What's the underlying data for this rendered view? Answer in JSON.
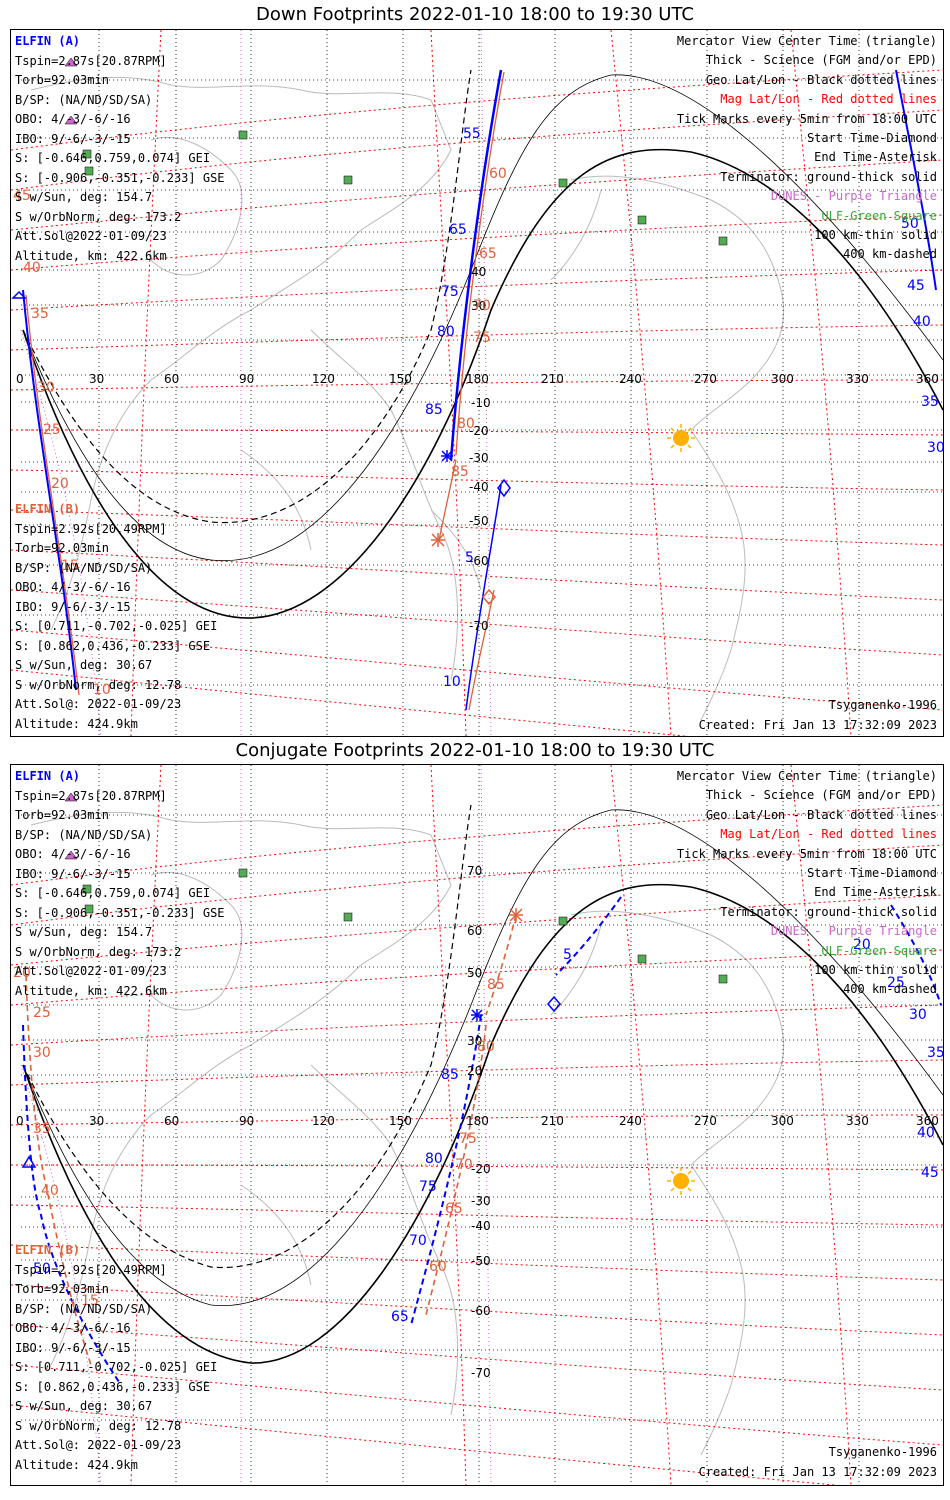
{
  "colors": {
    "elfin_a": "#0000ff",
    "elfin_b": "#e0603a",
    "mag_grid": "#ff0000",
    "geo_grid": "#000000",
    "terminator": "#000000",
    "sun": "#ffb000",
    "ground_station": "#33aa33",
    "dunes": "#cc66cc",
    "coast": "#bbbbbb"
  },
  "icons": {
    "sun": "sun-icon",
    "start": "diamond-icon",
    "end": "asterisk-icon",
    "center": "triangle-icon",
    "station": "square-icon"
  },
  "axes": {
    "lon_ticks": [
      "0",
      "30",
      "60",
      "90",
      "120",
      "150",
      "180",
      "210",
      "240",
      "270",
      "300",
      "330",
      "360"
    ]
  },
  "panels": [
    {
      "title": "Down Footprints 2022-01-10 18:00 to 19:30 UTC",
      "lat_labels": [
        "70",
        "60",
        "50",
        "40",
        "30",
        "20",
        "10",
        "-10",
        "-20",
        "-30",
        "-40",
        "-50",
        "-60",
        "-70"
      ],
      "elfin_a": {
        "name": "ELFIN (A)",
        "lines": [
          "Tspin=2.87s[20.87RPM]",
          "Torb=92.03min",
          "B/SP: (NA/ND/SD/SA)",
          "OBO: 4/-3/-6/-16",
          "IBO: 9/-6/-3/-15",
          "S: [-0.646,0.759,0.074] GEI",
          "S: [-0.906,-0.351,-0.233] GSE",
          "S w/Sun, deg: 154.7",
          "S w/OrbNorm, deg: 173.2",
          "Att.Sol@2022-01-09/23",
          "Altitude, km: 422.6km"
        ]
      },
      "elfin_b": {
        "name": "ELFIN (B)",
        "lines": [
          "Tspin=2.92s[20.49RPM]",
          "Torb=92.03min",
          "B/SP: (NA/ND/SD/SA)",
          "OBO: 4/-3/-6/-16",
          "IBO: 9/-6/-3/-15",
          "S: [0.711,-0.702,-0.025] GEI",
          "S: [0.862,0.436,-0.233] GSE",
          "S w/Sun, deg: 30.67",
          "S w/OrbNorm, deg: 12.78",
          "Att.Sol@: 2022-01-09/23",
          "Altitude: 424.9km"
        ]
      },
      "legend": [
        {
          "text": "Mercator View Center Time (triangle)",
          "color": "#000000"
        },
        {
          "text": "Thick - Science (FGM and/or EPD)",
          "color": "#000000"
        },
        {
          "text": "Geo Lat/Lon - Black dotted lines",
          "color": "#000000"
        },
        {
          "text": "Mag Lat/Lon - Red dotted lines",
          "color": "#ff0000"
        },
        {
          "text": "Tick Marks every 5min from 18:00 UTC",
          "color": "#000000"
        },
        {
          "text": "Start Time-Diamond",
          "color": "#000000"
        },
        {
          "text": "End Time-Asterisk",
          "color": "#000000"
        },
        {
          "text": "Terminator: ground-thick solid",
          "color": "#000000"
        },
        {
          "text": "DUNES - Purple Triangle",
          "color": "#cc66cc"
        },
        {
          "text": "ULF-Green Square",
          "color": "#33aa33"
        },
        {
          "text": "100 km-thin solid",
          "color": "#000000"
        },
        {
          "text": "400 km-dashed",
          "color": "#000000"
        }
      ],
      "model": "Tsyganenko-1996",
      "created": "Created: Fri Jan 13 17:32:09 2023",
      "ticks_a": [
        "55",
        "60",
        "65",
        "70",
        "75",
        "80",
        "85",
        "5",
        "10",
        "45",
        "50",
        "40",
        "35",
        "30",
        "20",
        "15",
        "25"
      ],
      "ticks_b": [
        "60",
        "65",
        "70",
        "75",
        "80",
        "85",
        "40",
        "35",
        "30",
        "25",
        "20",
        "15",
        "10",
        "45",
        "50"
      ]
    },
    {
      "title": "Conjugate Footprints 2022-01-10 18:00 to 19:30 UTC",
      "lat_labels": [
        "70",
        "60",
        "50",
        "40",
        "30",
        "20",
        "10",
        "-10",
        "-20",
        "-30",
        "-40",
        "-50",
        "-60",
        "-70"
      ],
      "elfin_a": {
        "name": "ELFIN (A)",
        "lines": [
          "Tspin=2.87s[20.87RPM]",
          "Torb=92.03min",
          "B/SP: (NA/ND/SD/SA)",
          "OBO: 4/-3/-6/-16",
          "IBO: 9/-6/-3/-15",
          "S: [-0.646,0.759,0.074] GEI",
          "S: [-0.906,-0.351,-0.233] GSE",
          "S w/Sun, deg: 154.7",
          "S w/OrbNorm, deg: 173.2",
          "Att.Sol@2022-01-09/23",
          "Altitude, km: 422.6km"
        ]
      },
      "elfin_b": {
        "name": "ELFIN (B)",
        "lines": [
          "Tspin=2.92s[20.49RPM]",
          "Torb=92.03min",
          "B/SP: (NA/ND/SD/SA)",
          "OBO: 4/-3/-6/-16",
          "IBO: 9/-6/-3/-15",
          "S: [0.711,-0.702,-0.025] GEI",
          "S: [0.862,0.436,-0.233] GSE",
          "S w/Sun, deg: 30.67",
          "S w/OrbNorm, deg: 12.78",
          "Att.Sol@: 2022-01-09/23",
          "Altitude: 424.9km"
        ]
      },
      "legend": [
        {
          "text": "Mercator View Center Time (triangle)",
          "color": "#000000"
        },
        {
          "text": "Thick - Science (FGM and/or EPD)",
          "color": "#000000"
        },
        {
          "text": "Geo Lat/Lon - Black dotted lines",
          "color": "#000000"
        },
        {
          "text": "Mag Lat/Lon - Red dotted lines",
          "color": "#ff0000"
        },
        {
          "text": "Tick Marks every 5min from 18:00 UTC",
          "color": "#000000"
        },
        {
          "text": "Start Time-Diamond",
          "color": "#000000"
        },
        {
          "text": "End Time-Asterisk",
          "color": "#000000"
        },
        {
          "text": "Terminator: ground-thick solid",
          "color": "#000000"
        },
        {
          "text": "DUNES - Purple Triangle",
          "color": "#cc66cc"
        },
        {
          "text": "ULF-Green Square",
          "color": "#33aa33"
        },
        {
          "text": "100 km-thin solid",
          "color": "#000000"
        },
        {
          "text": "400 km-dashed",
          "color": "#000000"
        }
      ],
      "model": "Tsyganenko-1996",
      "created": "Created: Fri Jan 13 17:32:09 2023",
      "ticks_a": [
        "5",
        "3",
        "20",
        "25",
        "30",
        "35",
        "40",
        "45",
        "85",
        "80",
        "75",
        "70",
        "65",
        "50"
      ],
      "ticks_b": [
        "85",
        "80",
        "75",
        "70",
        "65",
        "60",
        "40",
        "35",
        "30",
        "25",
        "20",
        "15"
      ]
    }
  ]
}
